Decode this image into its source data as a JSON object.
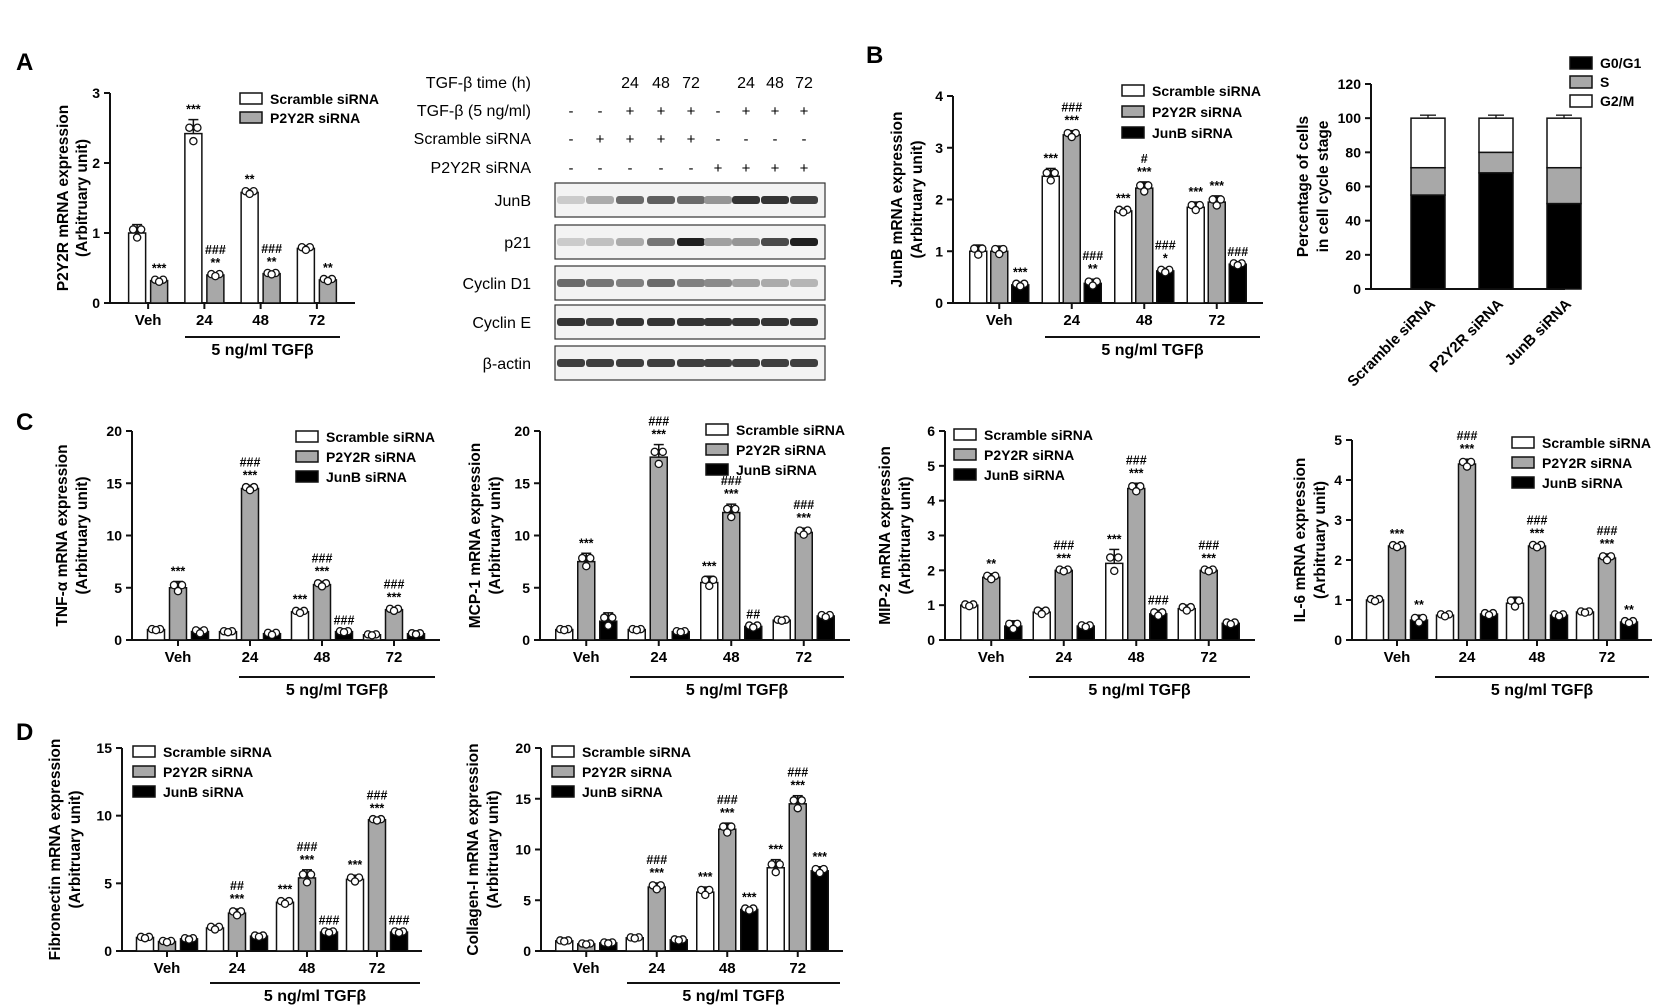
{
  "legend_labels": {
    "scr": "Scramble siRNA",
    "p2": "P2Y2R siRNA",
    "jb": "JunB siRNA"
  },
  "fills": {
    "scr": "#ffffff",
    "p2": "#a8a8a8",
    "jb": "#000000"
  },
  "treatment_label": "5 ng/ml TGFβ",
  "chart_data": [
    {
      "id": "A-bar",
      "panel_letter": "A",
      "type": "bar",
      "categories": [
        "Veh",
        "24",
        "48",
        "72"
      ],
      "ylabel": [
        "P2Y2R mRNA expression",
        "(Arbitruary unit)"
      ],
      "ylim": [
        0,
        3
      ],
      "yticks": [
        0,
        1,
        2,
        3
      ],
      "series": [
        {
          "name": "Scramble siRNA",
          "values": [
            1.0,
            2.42,
            1.58,
            0.78
          ],
          "errors": [
            0.12,
            0.2,
            0.04,
            0.04
          ]
        },
        {
          "name": "P2Y2R siRNA",
          "values": [
            0.32,
            0.4,
            0.42,
            0.33
          ],
          "errors": [
            0.03,
            0.03,
            0.02,
            0.03
          ]
        }
      ],
      "annotations": [
        {
          "cat": 0,
          "series": 1,
          "lines": [
            "***"
          ]
        },
        {
          "cat": 1,
          "series": 0,
          "lines": [
            "***"
          ]
        },
        {
          "cat": 1,
          "series": 1,
          "lines": [
            "###",
            "**"
          ]
        },
        {
          "cat": 2,
          "series": 0,
          "lines": [
            "**"
          ]
        },
        {
          "cat": 2,
          "series": 1,
          "lines": [
            "###",
            "**"
          ]
        },
        {
          "cat": 3,
          "series": 1,
          "lines": [
            "**"
          ]
        }
      ]
    },
    {
      "id": "B-bar",
      "panel_letter": "B",
      "type": "bar",
      "categories": [
        "Veh",
        "24",
        "48",
        "72"
      ],
      "ylabel": [
        "JunB mRNA expression",
        "(Arbitruary unit)"
      ],
      "ylim": [
        0,
        4
      ],
      "yticks": [
        0,
        1,
        2,
        3,
        4
      ],
      "series": [
        {
          "name": "Scramble siRNA",
          "values": [
            1.0,
            2.45,
            1.78,
            1.85
          ],
          "errors": [
            0.12,
            0.15,
            0.05,
            0.1
          ]
        },
        {
          "name": "P2Y2R siRNA",
          "values": [
            1.0,
            3.25,
            2.22,
            1.95
          ],
          "errors": [
            0.1,
            0.08,
            0.12,
            0.12
          ]
        },
        {
          "name": "JunB siRNA",
          "values": [
            0.35,
            0.38,
            0.62,
            0.75
          ],
          "errors": [
            0.05,
            0.08,
            0.05,
            0.04
          ]
        }
      ],
      "annotations": [
        {
          "cat": 0,
          "series": 2,
          "lines": [
            "***"
          ]
        },
        {
          "cat": 1,
          "series": 0,
          "lines": [
            "***"
          ]
        },
        {
          "cat": 1,
          "series": 1,
          "lines": [
            "###",
            "***"
          ]
        },
        {
          "cat": 1,
          "series": 2,
          "lines": [
            "###",
            "**"
          ]
        },
        {
          "cat": 2,
          "series": 0,
          "lines": [
            "***"
          ]
        },
        {
          "cat": 2,
          "series": 1,
          "lines": [
            "#",
            "***"
          ]
        },
        {
          "cat": 2,
          "series": 2,
          "lines": [
            "###",
            "*"
          ]
        },
        {
          "cat": 3,
          "series": 0,
          "lines": [
            "***"
          ]
        },
        {
          "cat": 3,
          "series": 1,
          "lines": [
            "***"
          ]
        },
        {
          "cat": 3,
          "series": 2,
          "lines": [
            "###"
          ]
        }
      ]
    },
    {
      "id": "B-stack",
      "type": "stacked-bar",
      "categories": [
        "Scramble siRNA",
        "P2Y2R siRNA",
        "JunB siRNA"
      ],
      "ylabel": [
        "Percentage of cells",
        "in cell cycle stage"
      ],
      "ylim": [
        0,
        120
      ],
      "yticks": [
        0,
        20,
        40,
        60,
        80,
        100,
        120
      ],
      "series": [
        {
          "name": "G0/G1",
          "values": [
            55,
            68,
            50
          ],
          "color": "#000000"
        },
        {
          "name": "S",
          "values": [
            16,
            12,
            21
          ],
          "color": "#a8a8a8"
        },
        {
          "name": "G2/M",
          "values": [
            29,
            20,
            29
          ],
          "color": "#ffffff"
        }
      ]
    },
    {
      "id": "C-tnf",
      "panel_letter": "C",
      "type": "bar",
      "categories": [
        "Veh",
        "24",
        "48",
        "72"
      ],
      "ylabel": [
        "TNF-α mRNA expression",
        "(Arbitruary unit)"
      ],
      "ylim": [
        0,
        20
      ],
      "yticks": [
        0,
        5,
        10,
        15,
        20
      ],
      "series": [
        {
          "name": "Scramble siRNA",
          "values": [
            1.0,
            0.8,
            2.7,
            0.5
          ],
          "errors": [
            0.1,
            0.1,
            0.2,
            0.1
          ]
        },
        {
          "name": "P2Y2R siRNA",
          "values": [
            5.0,
            14.5,
            5.3,
            2.9
          ],
          "errors": [
            0.6,
            0.3,
            0.3,
            0.2
          ]
        },
        {
          "name": "JunB siRNA",
          "values": [
            0.8,
            0.6,
            0.8,
            0.6
          ],
          "errors": [
            0.3,
            0.2,
            0.1,
            0.1
          ]
        }
      ],
      "annotations": [
        {
          "cat": 0,
          "series": 1,
          "lines": [
            "***"
          ]
        },
        {
          "cat": 1,
          "series": 1,
          "lines": [
            "###",
            "***"
          ]
        },
        {
          "cat": 2,
          "series": 0,
          "lines": [
            "***"
          ]
        },
        {
          "cat": 2,
          "series": 1,
          "lines": [
            "###",
            "***"
          ]
        },
        {
          "cat": 2,
          "series": 2,
          "lines": [
            "###"
          ]
        },
        {
          "cat": 3,
          "series": 1,
          "lines": [
            "###",
            "***"
          ]
        }
      ]
    },
    {
      "id": "C-mcp",
      "type": "bar",
      "categories": [
        "Veh",
        "24",
        "48",
        "72"
      ],
      "ylabel": [
        "MCP-1 mRNA expression",
        "(Arbitruary unit)"
      ],
      "ylim": [
        0,
        20
      ],
      "yticks": [
        0,
        5,
        10,
        15,
        20
      ],
      "series": [
        {
          "name": "Scramble siRNA",
          "values": [
            1.0,
            1.0,
            5.5,
            1.9
          ],
          "errors": [
            0.1,
            0.1,
            0.6,
            0.1
          ]
        },
        {
          "name": "P2Y2R siRNA",
          "values": [
            7.5,
            17.5,
            12.2,
            10.3
          ],
          "errors": [
            0.8,
            1.2,
            0.8,
            0.4
          ]
        },
        {
          "name": "JunB siRNA",
          "values": [
            1.8,
            0.8,
            1.3,
            2.3
          ],
          "errors": [
            0.8,
            0.1,
            0.2,
            0.2
          ]
        }
      ],
      "annotations": [
        {
          "cat": 0,
          "series": 1,
          "lines": [
            "***"
          ]
        },
        {
          "cat": 1,
          "series": 1,
          "lines": [
            "###",
            "***"
          ]
        },
        {
          "cat": 2,
          "series": 0,
          "lines": [
            "***"
          ]
        },
        {
          "cat": 2,
          "series": 1,
          "lines": [
            "###",
            "***"
          ]
        },
        {
          "cat": 2,
          "series": 2,
          "lines": [
            "##"
          ]
        },
        {
          "cat": 3,
          "series": 1,
          "lines": [
            "###",
            "***"
          ]
        }
      ]
    },
    {
      "id": "C-mip",
      "type": "bar",
      "categories": [
        "Veh",
        "24",
        "48",
        "72"
      ],
      "ylabel": [
        "MIP-2 mRNA expression",
        "(Arbitruary unit)"
      ],
      "ylim": [
        0,
        6
      ],
      "yticks": [
        0,
        1,
        2,
        3,
        4,
        5,
        6
      ],
      "series": [
        {
          "name": "Scramble siRNA",
          "values": [
            1.0,
            0.8,
            2.2,
            0.9
          ],
          "errors": [
            0.05,
            0.1,
            0.4,
            0.1
          ]
        },
        {
          "name": "P2Y2R siRNA",
          "values": [
            1.8,
            2.0,
            4.35,
            2.0
          ],
          "errors": [
            0.1,
            0.05,
            0.15,
            0.05
          ]
        },
        {
          "name": "JunB siRNA",
          "values": [
            0.4,
            0.4,
            0.75,
            0.48
          ],
          "errors": [
            0.15,
            0.05,
            0.1,
            0.05
          ]
        }
      ],
      "annotations": [
        {
          "cat": 0,
          "series": 1,
          "lines": [
            "**"
          ]
        },
        {
          "cat": 1,
          "series": 1,
          "lines": [
            "###",
            "***"
          ]
        },
        {
          "cat": 2,
          "series": 0,
          "lines": [
            "***"
          ]
        },
        {
          "cat": 2,
          "series": 1,
          "lines": [
            "###",
            "***"
          ]
        },
        {
          "cat": 2,
          "series": 2,
          "lines": [
            "###"
          ]
        },
        {
          "cat": 3,
          "series": 1,
          "lines": [
            "###",
            "***"
          ]
        }
      ]
    },
    {
      "id": "C-il6",
      "type": "bar",
      "categories": [
        "Veh",
        "24",
        "48",
        "72"
      ],
      "ylabel": [
        "IL-6 mRNA expression",
        "(Arbitruary unit)"
      ],
      "ylim": [
        0,
        5
      ],
      "yticks": [
        0,
        1,
        2,
        3,
        4,
        5
      ],
      "series": [
        {
          "name": "Scramble siRNA",
          "values": [
            1.0,
            0.62,
            0.92,
            0.7
          ],
          "errors": [
            0.05,
            0.05,
            0.15,
            0.03
          ]
        },
        {
          "name": "P2Y2R siRNA",
          "values": [
            2.35,
            4.4,
            2.35,
            2.05
          ],
          "errors": [
            0.05,
            0.12,
            0.06,
            0.1
          ]
        },
        {
          "name": "JunB siRNA",
          "values": [
            0.5,
            0.65,
            0.62,
            0.45
          ],
          "errors": [
            0.12,
            0.05,
            0.05,
            0.05
          ]
        }
      ],
      "annotations": [
        {
          "cat": 0,
          "series": 1,
          "lines": [
            "***"
          ]
        },
        {
          "cat": 0,
          "series": 2,
          "lines": [
            "**"
          ]
        },
        {
          "cat": 1,
          "series": 1,
          "lines": [
            "###",
            "***"
          ]
        },
        {
          "cat": 2,
          "series": 1,
          "lines": [
            "###",
            "***"
          ]
        },
        {
          "cat": 3,
          "series": 1,
          "lines": [
            "###",
            "***"
          ]
        },
        {
          "cat": 3,
          "series": 2,
          "lines": [
            "**"
          ]
        }
      ]
    },
    {
      "id": "D-fn",
      "panel_letter": "D",
      "type": "bar",
      "categories": [
        "Veh",
        "24",
        "48",
        "72"
      ],
      "ylabel": [
        "Fibronectin mRNA expression",
        "(Arbitruary unit)"
      ],
      "ylim": [
        0,
        15
      ],
      "yticks": [
        0,
        5,
        10,
        15
      ],
      "series": [
        {
          "name": "Scramble siRNA",
          "values": [
            1.0,
            1.7,
            3.6,
            5.3
          ],
          "errors": [
            0.1,
            0.2,
            0.2,
            0.3
          ]
        },
        {
          "name": "P2Y2R siRNA",
          "values": [
            0.7,
            2.8,
            5.4,
            9.7
          ],
          "errors": [
            0.1,
            0.3,
            0.6,
            0.1
          ]
        },
        {
          "name": "JunB siRNA",
          "values": [
            0.9,
            1.1,
            1.4,
            1.4
          ],
          "errors": [
            0.1,
            0.1,
            0.1,
            0.1
          ]
        }
      ],
      "annotations": [
        {
          "cat": 1,
          "series": 1,
          "lines": [
            "##",
            "***"
          ]
        },
        {
          "cat": 2,
          "series": 0,
          "lines": [
            "***"
          ]
        },
        {
          "cat": 2,
          "series": 1,
          "lines": [
            "###",
            "***"
          ]
        },
        {
          "cat": 2,
          "series": 2,
          "lines": [
            "###"
          ]
        },
        {
          "cat": 3,
          "series": 0,
          "lines": [
            "***"
          ]
        },
        {
          "cat": 3,
          "series": 1,
          "lines": [
            "###",
            "***"
          ]
        },
        {
          "cat": 3,
          "series": 2,
          "lines": [
            "###"
          ]
        }
      ]
    },
    {
      "id": "D-col",
      "type": "bar",
      "categories": [
        "Veh",
        "24",
        "48",
        "72"
      ],
      "ylabel": [
        "Collagen-I mRNA expression",
        "(Arbitruary unit)"
      ],
      "ylim": [
        0,
        20
      ],
      "yticks": [
        0,
        5,
        10,
        15,
        20
      ],
      "series": [
        {
          "name": "Scramble siRNA",
          "values": [
            1.0,
            1.3,
            5.8,
            8.2
          ],
          "errors": [
            0.1,
            0.1,
            0.5,
            0.8
          ]
        },
        {
          "name": "P2Y2R siRNA",
          "values": [
            0.7,
            6.3,
            12.0,
            14.5
          ],
          "errors": [
            0.1,
            0.4,
            0.6,
            0.8
          ]
        },
        {
          "name": "JunB siRNA",
          "values": [
            0.8,
            1.1,
            4.1,
            7.9
          ],
          "errors": [
            0.1,
            0.1,
            0.2,
            0.4
          ]
        }
      ],
      "annotations": [
        {
          "cat": 1,
          "series": 1,
          "lines": [
            "###",
            "***"
          ]
        },
        {
          "cat": 2,
          "series": 0,
          "lines": [
            "***"
          ]
        },
        {
          "cat": 2,
          "series": 1,
          "lines": [
            "###",
            "***"
          ]
        },
        {
          "cat": 2,
          "series": 2,
          "lines": [
            "***"
          ]
        },
        {
          "cat": 3,
          "series": 0,
          "lines": [
            "***"
          ]
        },
        {
          "cat": 3,
          "series": 1,
          "lines": [
            "###",
            "***"
          ]
        },
        {
          "cat": 3,
          "series": 2,
          "lines": [
            "***"
          ]
        }
      ]
    }
  ],
  "blot": {
    "time_label": "TGF-β time (h)",
    "time_values": [
      "24",
      "48",
      "72",
      "24",
      "48",
      "72"
    ],
    "tgf_label": "TGF-β (5 ng/ml)",
    "tgf_values": [
      "-",
      "-",
      "+",
      "+",
      "+",
      "-",
      "+",
      "+",
      "+"
    ],
    "scr_label": "Scramble siRNA",
    "scr_values": [
      "-",
      "+",
      "+",
      "+",
      "+",
      "-",
      "-",
      "-",
      "-"
    ],
    "p2_label": "P2Y2R siRNA",
    "p2_values": [
      "-",
      "-",
      "-",
      "-",
      "-",
      "+",
      "+",
      "+",
      "+"
    ],
    "bands": [
      {
        "name": "JunB",
        "intensity": [
          0.15,
          0.3,
          0.6,
          0.65,
          0.6,
          0.4,
          0.85,
          0.85,
          0.8
        ]
      },
      {
        "name": "p21",
        "intensity": [
          0.15,
          0.2,
          0.3,
          0.55,
          0.95,
          0.35,
          0.4,
          0.75,
          0.95
        ]
      },
      {
        "name": "Cyclin D1",
        "intensity": [
          0.6,
          0.55,
          0.5,
          0.6,
          0.5,
          0.45,
          0.35,
          0.3,
          0.25
        ]
      },
      {
        "name": "Cyclin E",
        "intensity": [
          0.85,
          0.8,
          0.85,
          0.85,
          0.85,
          0.85,
          0.85,
          0.85,
          0.85
        ]
      },
      {
        "name": "β-actin",
        "intensity": [
          0.8,
          0.8,
          0.8,
          0.8,
          0.8,
          0.8,
          0.8,
          0.8,
          0.8
        ]
      }
    ]
  }
}
